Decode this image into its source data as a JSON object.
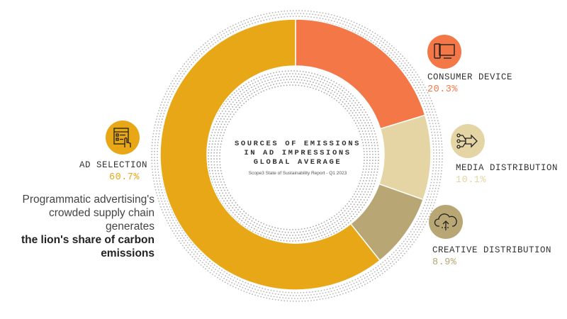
{
  "chart_data": {
    "type": "pie",
    "title": "SOURCES OF EMISSIONS\nIN AD IMPRESSIONS\nGLOBAL AVERAGE",
    "subtitle": "Scope3 State of Sustainability Report - Q1 2023",
    "categories": [
      "CONSUMER DEVICE",
      "MEDIA DISTRIBUTION",
      "CREATIVE DISTRIBUTION",
      "AD SELECTION"
    ],
    "values": [
      20.3,
      10.1,
      8.9,
      60.7
    ],
    "value_labels": [
      "20.3%",
      "10.1%",
      "8.9%",
      "60.7%"
    ],
    "colors": [
      "#F47748",
      "#E5D5A4",
      "#B8A774",
      "#E8A716"
    ],
    "donut": true,
    "start": "top, clockwise"
  },
  "annotations": {
    "ad_selection_note": "Programmatic advertising's crowded supply chain generates",
    "ad_selection_note_bold": "the lion's share of carbon emissions"
  },
  "icons": {
    "consumer_device": "device-icon",
    "media_distribution": "network-arrow-icon",
    "creative_distribution": "cloud-upload-icon",
    "ad_selection": "checklist-click-icon"
  },
  "colors": {
    "text": "#333333",
    "icon_stroke": "#222222"
  }
}
